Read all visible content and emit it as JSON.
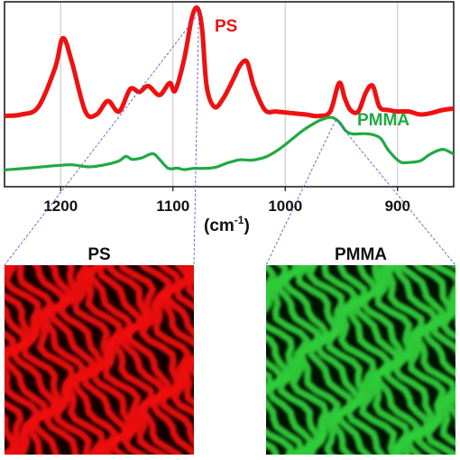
{
  "chart_data": {
    "type": "line",
    "title": "",
    "xlabel": "(cm-1)",
    "ylabel": "",
    "x_reversed": true,
    "xlim": [
      1250,
      850
    ],
    "xticks": [
      1200,
      1100,
      1000,
      900
    ],
    "grid": "vertical",
    "series": [
      {
        "name": "PS",
        "color": "#ee1111",
        "points": [
          [
            1250,
            0.4
          ],
          [
            1235,
            0.41
          ],
          [
            1220,
            0.46
          ],
          [
            1205,
            0.72
          ],
          [
            1198,
            0.92
          ],
          [
            1190,
            0.76
          ],
          [
            1178,
            0.43
          ],
          [
            1168,
            0.41
          ],
          [
            1158,
            0.5
          ],
          [
            1148,
            0.43
          ],
          [
            1138,
            0.58
          ],
          [
            1130,
            0.56
          ],
          [
            1122,
            0.6
          ],
          [
            1112,
            0.54
          ],
          [
            1103,
            0.62
          ],
          [
            1098,
            0.57
          ],
          [
            1090,
            0.78
          ],
          [
            1083,
            1.06
          ],
          [
            1078,
            1.12
          ],
          [
            1074,
            0.98
          ],
          [
            1070,
            0.6
          ],
          [
            1063,
            0.46
          ],
          [
            1055,
            0.52
          ],
          [
            1046,
            0.65
          ],
          [
            1040,
            0.74
          ],
          [
            1034,
            0.76
          ],
          [
            1028,
            0.6
          ],
          [
            1018,
            0.44
          ],
          [
            1008,
            0.43
          ],
          [
            995,
            0.42
          ],
          [
            982,
            0.41
          ],
          [
            970,
            0.4
          ],
          [
            960,
            0.43
          ],
          [
            952,
            0.62
          ],
          [
            947,
            0.52
          ],
          [
            942,
            0.44
          ],
          [
            935,
            0.43
          ],
          [
            928,
            0.56
          ],
          [
            922,
            0.6
          ],
          [
            916,
            0.46
          ],
          [
            908,
            0.44
          ],
          [
            900,
            0.43
          ],
          [
            890,
            0.43
          ],
          [
            880,
            0.41
          ],
          [
            870,
            0.42
          ],
          [
            860,
            0.44
          ],
          [
            850,
            0.45
          ]
        ]
      },
      {
        "name": "PMMA",
        "color": "#1faa44",
        "points": [
          [
            1250,
            0.04
          ],
          [
            1235,
            0.048
          ],
          [
            1220,
            0.058
          ],
          [
            1205,
            0.068
          ],
          [
            1190,
            0.074
          ],
          [
            1175,
            0.06
          ],
          [
            1160,
            0.075
          ],
          [
            1148,
            0.1
          ],
          [
            1142,
            0.13
          ],
          [
            1136,
            0.11
          ],
          [
            1128,
            0.12
          ],
          [
            1118,
            0.148
          ],
          [
            1112,
            0.11
          ],
          [
            1104,
            0.05
          ],
          [
            1096,
            0.052
          ],
          [
            1090,
            0.042
          ],
          [
            1082,
            0.05
          ],
          [
            1072,
            0.05
          ],
          [
            1062,
            0.058
          ],
          [
            1050,
            0.09
          ],
          [
            1040,
            0.108
          ],
          [
            1030,
            0.105
          ],
          [
            1018,
            0.125
          ],
          [
            1006,
            0.175
          ],
          [
            994,
            0.245
          ],
          [
            984,
            0.305
          ],
          [
            972,
            0.36
          ],
          [
            964,
            0.385
          ],
          [
            958,
            0.39
          ],
          [
            952,
            0.36
          ],
          [
            946,
            0.3
          ],
          [
            940,
            0.28
          ],
          [
            930,
            0.282
          ],
          [
            922,
            0.275
          ],
          [
            915,
            0.25
          ],
          [
            908,
            0.17
          ],
          [
            898,
            0.095
          ],
          [
            890,
            0.09
          ],
          [
            880,
            0.1
          ],
          [
            872,
            0.14
          ],
          [
            864,
            0.17
          ],
          [
            858,
            0.175
          ],
          [
            850,
            0.145
          ]
        ]
      }
    ],
    "callouts": [
      {
        "from_series": "PS",
        "at_x": 1077,
        "to_panel": "PS"
      },
      {
        "from_series": "PMMA",
        "at_x": 955,
        "to_panel": "PMMA"
      }
    ]
  },
  "labels": {
    "ps_series": "PS",
    "pmma_series": "PMMA",
    "unit": "(cm-1)",
    "unit_base": "(cm",
    "unit_exp": "-1",
    "unit_close": ")",
    "ps_panel": "PS",
    "pmma_panel": "PMMA"
  },
  "images": {
    "ps_map": {
      "color": "#ee1111",
      "dark": "#140000",
      "kind": "fingerprint-lamellae"
    },
    "pmma_map": {
      "color": "#2ecc38",
      "dark": "#001200",
      "kind": "fingerprint-lamellae"
    }
  },
  "colors": {
    "axis": "#111111",
    "grid": "#cccccc",
    "callout": "#5566bb"
  }
}
